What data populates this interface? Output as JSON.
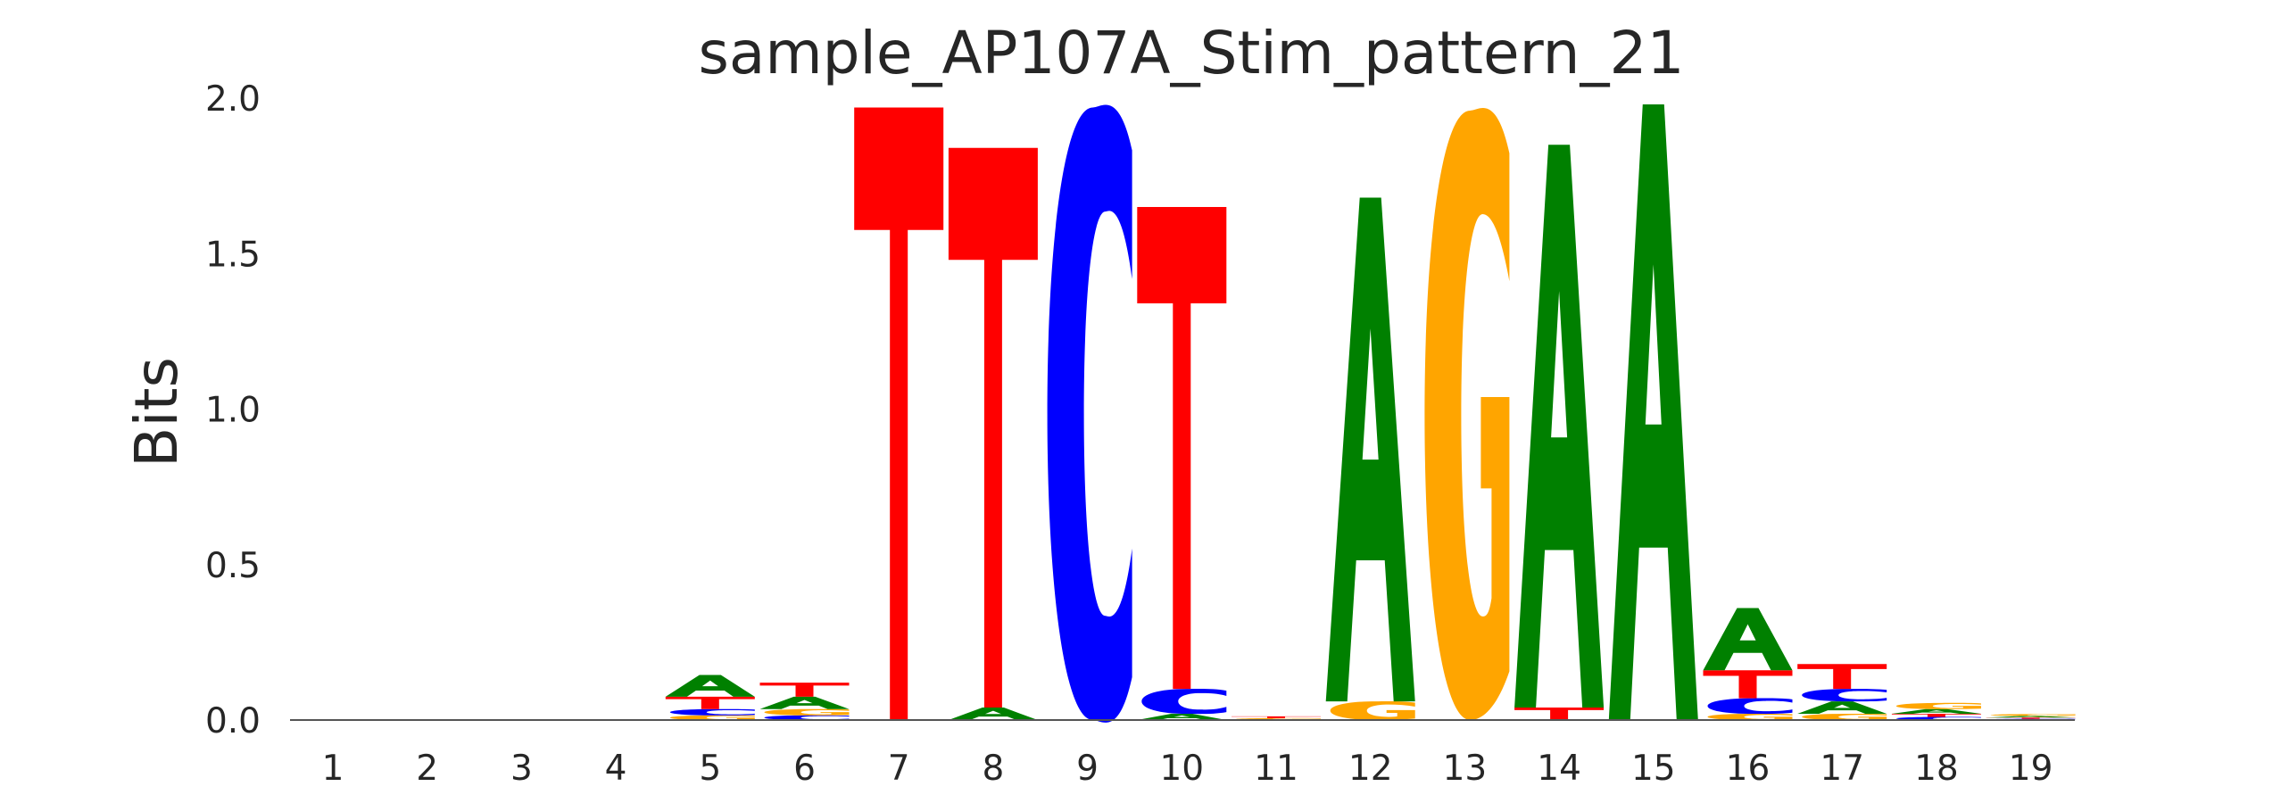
{
  "chart_data": {
    "type": "sequence-logo",
    "title": "sample_AP107A_Stim_pattern_21",
    "xlabel": "",
    "ylabel": "Bits",
    "ylim": [
      0,
      2.0
    ],
    "yticks": [
      "0.0",
      "0.5",
      "1.0",
      "1.5",
      "2.0"
    ],
    "grid": false,
    "colors": {
      "A": "#008000",
      "C": "#0000ff",
      "G": "#ffa500",
      "T": "#ff0000"
    },
    "positions": [
      {
        "label": "1",
        "letters": []
      },
      {
        "label": "2",
        "letters": []
      },
      {
        "label": "3",
        "letters": []
      },
      {
        "label": "4",
        "letters": []
      },
      {
        "label": "5",
        "letters": [
          {
            "base": "G",
            "bits": 0.015
          },
          {
            "base": "C",
            "bits": 0.02
          },
          {
            "base": "T",
            "bits": 0.04
          },
          {
            "base": "A",
            "bits": 0.07
          }
        ]
      },
      {
        "label": "6",
        "letters": [
          {
            "base": "C",
            "bits": 0.015
          },
          {
            "base": "G",
            "bits": 0.02
          },
          {
            "base": "A",
            "bits": 0.04
          },
          {
            "base": "T",
            "bits": 0.045
          }
        ]
      },
      {
        "label": "7",
        "letters": [
          {
            "base": "T",
            "bits": 1.97
          }
        ]
      },
      {
        "label": "8",
        "letters": [
          {
            "base": "A",
            "bits": 0.04
          },
          {
            "base": "T",
            "bits": 1.8
          }
        ]
      },
      {
        "label": "9",
        "letters": [
          {
            "base": "C",
            "bits": 1.97
          }
        ]
      },
      {
        "label": "10",
        "letters": [
          {
            "base": "A",
            "bits": 0.02
          },
          {
            "base": "C",
            "bits": 0.08
          },
          {
            "base": "T",
            "bits": 1.55
          }
        ]
      },
      {
        "label": "11",
        "letters": [
          {
            "base": "G",
            "bits": 0.006
          },
          {
            "base": "T",
            "bits": 0.006
          }
        ]
      },
      {
        "label": "12",
        "letters": [
          {
            "base": "G",
            "bits": 0.06
          },
          {
            "base": "A",
            "bits": 1.62
          }
        ]
      },
      {
        "label": "13",
        "letters": [
          {
            "base": "G",
            "bits": 1.96
          }
        ]
      },
      {
        "label": "14",
        "letters": [
          {
            "base": "T",
            "bits": 0.04
          },
          {
            "base": "A",
            "bits": 1.81
          }
        ]
      },
      {
        "label": "15",
        "letters": [
          {
            "base": "A",
            "bits": 1.98
          }
        ]
      },
      {
        "label": "16",
        "letters": [
          {
            "base": "G",
            "bits": 0.02
          },
          {
            "base": "C",
            "bits": 0.05
          },
          {
            "base": "T",
            "bits": 0.09
          },
          {
            "base": "A",
            "bits": 0.2
          }
        ]
      },
      {
        "label": "17",
        "letters": [
          {
            "base": "G",
            "bits": 0.02
          },
          {
            "base": "A",
            "bits": 0.04
          },
          {
            "base": "C",
            "bits": 0.04
          },
          {
            "base": "T",
            "bits": 0.08
          }
        ]
      },
      {
        "label": "18",
        "letters": [
          {
            "base": "C",
            "bits": 0.01
          },
          {
            "base": "T",
            "bits": 0.01
          },
          {
            "base": "A",
            "bits": 0.015
          },
          {
            "base": "G",
            "bits": 0.02
          }
        ]
      },
      {
        "label": "19",
        "letters": [
          {
            "base": "C",
            "bits": 0.004
          },
          {
            "base": "T",
            "bits": 0.004
          },
          {
            "base": "A",
            "bits": 0.005
          },
          {
            "base": "G",
            "bits": 0.006
          }
        ]
      }
    ]
  }
}
